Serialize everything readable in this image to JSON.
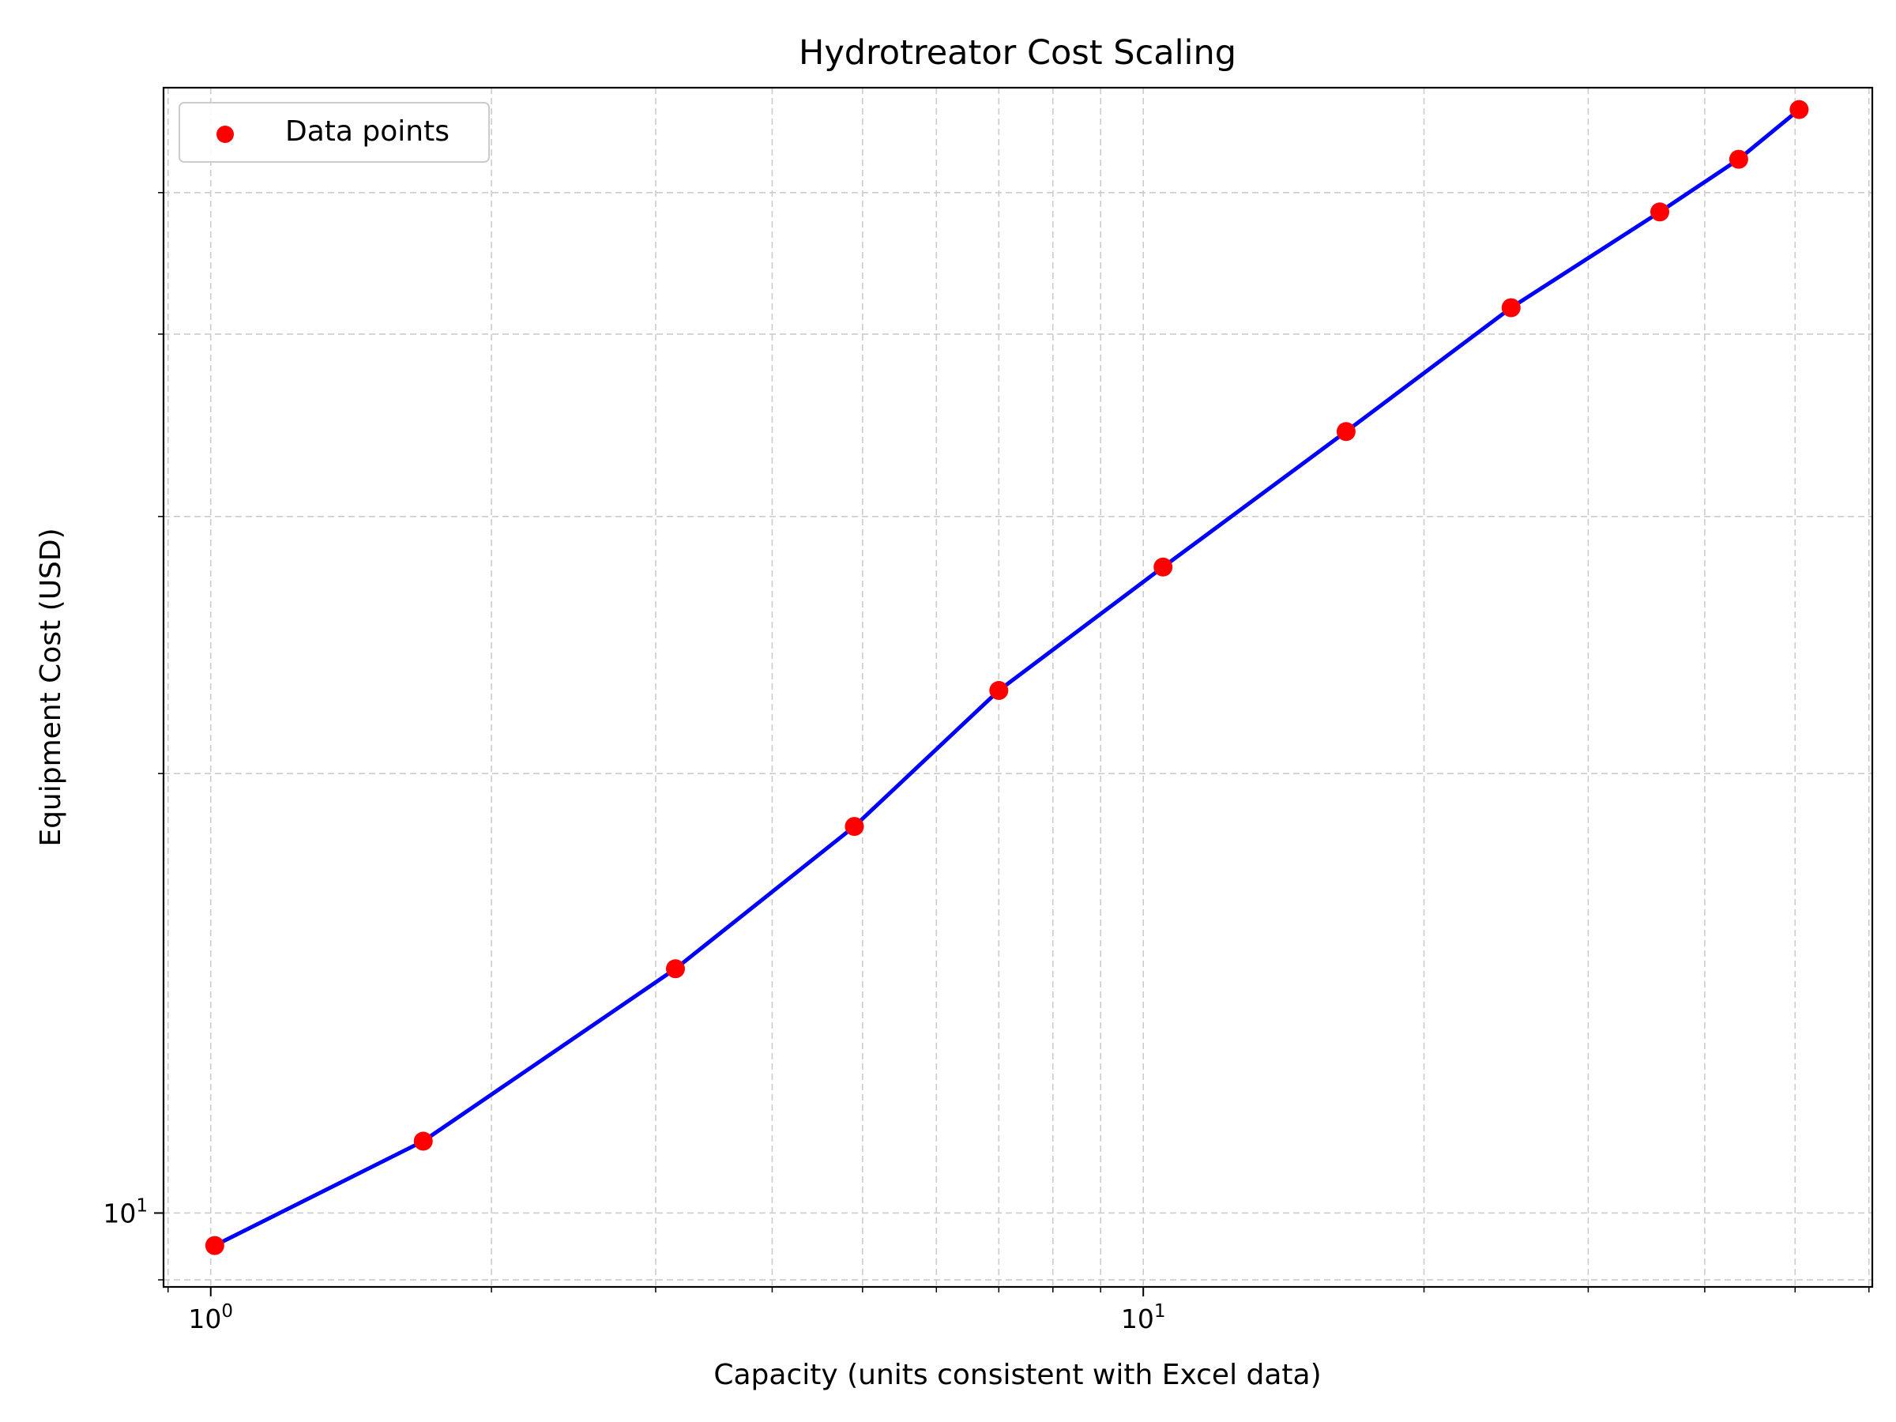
{
  "chart_data": {
    "type": "scatter",
    "title": "Hydrotreator Cost Scaling",
    "xlabel": "Capacity (units consistent with Excel data)",
    "ylabel": "Equipment Cost (USD)",
    "xscale": "log",
    "yscale": "log",
    "xlim": [
      0.89,
      60.5
    ],
    "ylim": [
      8.9,
      59
    ],
    "x_major_ticks": [
      {
        "value": 1,
        "base": "10",
        "exp": "0"
      },
      {
        "value": 10,
        "base": "10",
        "exp": "1"
      }
    ],
    "y_major_ticks": [
      {
        "value": 10,
        "base": "10",
        "exp": "1"
      }
    ],
    "grid": true,
    "legend": {
      "position": "top-left",
      "entries": [
        "Data points"
      ]
    },
    "colors": {
      "points": "#ff0000",
      "line": "#0000ff"
    },
    "series": [
      {
        "name": "Data points",
        "kind": "scatter",
        "x": [
          1.01,
          1.69,
          3.15,
          4.9,
          7.0,
          10.5,
          16.5,
          24.8,
          35.8,
          43.5,
          50.5
        ],
        "y": [
          9.5,
          11.2,
          14.7,
          18.4,
          22.8,
          27.7,
          34.3,
          41.7,
          48.5,
          52.7,
          57.0
        ]
      },
      {
        "kind": "line",
        "x": [
          1.01,
          1.69,
          3.15,
          4.9,
          7.0,
          10.5,
          16.5,
          24.8,
          35.8,
          43.5,
          50.5
        ],
        "y": [
          9.5,
          11.2,
          14.7,
          18.4,
          22.8,
          27.7,
          34.3,
          41.7,
          48.5,
          52.7,
          57.0
        ]
      }
    ]
  }
}
